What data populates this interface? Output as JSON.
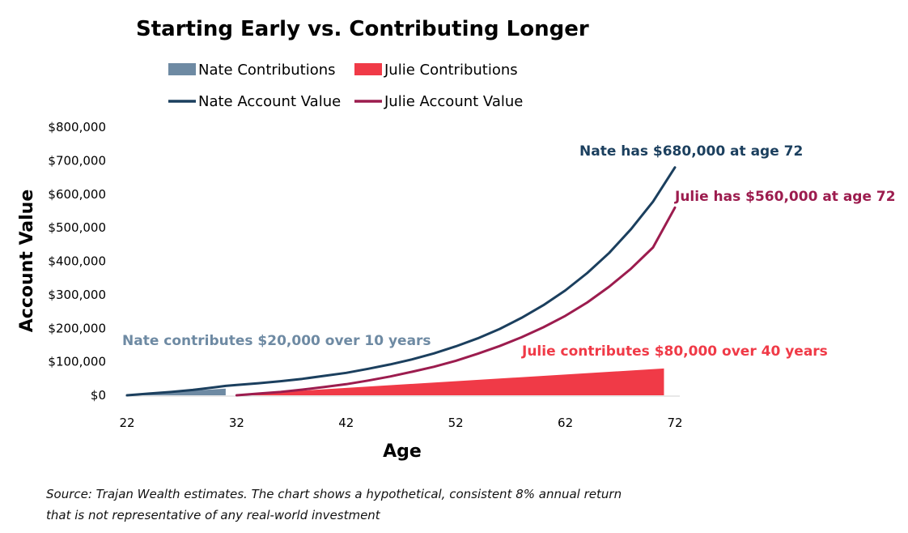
{
  "chart_data": {
    "type": "line",
    "title": "Starting Early vs. Contributing Longer",
    "xlabel": "Age",
    "ylabel": "Account Value",
    "xlim": [
      22,
      72
    ],
    "ylim": [
      0,
      800000
    ],
    "x_ticks": [
      "22",
      "32",
      "42",
      "52",
      "62",
      "72"
    ],
    "y_ticks": [
      "$0",
      "$100,000",
      "$200,000",
      "$300,000",
      "$400,000",
      "$500,000",
      "$600,000",
      "$700,000",
      "$800,000"
    ],
    "grid": false,
    "legend_position": "top",
    "legend": [
      {
        "label": "Nate Contributions",
        "kind": "area",
        "color": "#6e8aa3"
      },
      {
        "label": "Julie Contributions",
        "kind": "area",
        "color": "#f03a47"
      },
      {
        "label": "Nate Account Value",
        "kind": "line",
        "color": "#1b3f5e"
      },
      {
        "label": "Julie Account Value",
        "kind": "line",
        "color": "#9c1c4e"
      }
    ],
    "series": [
      {
        "name": "Nate Contributions",
        "type": "area",
        "color": "#6e8aa3",
        "x": [
          22,
          31
        ],
        "values": [
          2000,
          20000
        ]
      },
      {
        "name": "Julie Contributions",
        "type": "area",
        "color": "#f03a47",
        "x": [
          32,
          71
        ],
        "values": [
          2000,
          80000
        ]
      },
      {
        "name": "Nate Account Value",
        "type": "line",
        "color": "#1b3f5e",
        "x": [
          22,
          24,
          26,
          28,
          30,
          31,
          32,
          34,
          36,
          38,
          40,
          42,
          44,
          46,
          48,
          50,
          52,
          54,
          56,
          58,
          60,
          62,
          64,
          66,
          68,
          70,
          72
        ],
        "values": [
          0,
          5000,
          10000,
          16000,
          24000,
          28000,
          31000,
          36000,
          42000,
          49000,
          58000,
          67000,
          79000,
          92000,
          107000,
          125000,
          146000,
          170000,
          198000,
          231000,
          269000,
          313000,
          365000,
          425000,
          496000,
          578000,
          680000
        ]
      },
      {
        "name": "Julie Account Value",
        "type": "line",
        "color": "#9c1c4e",
        "x": [
          32,
          34,
          36,
          38,
          40,
          42,
          44,
          46,
          48,
          50,
          52,
          54,
          56,
          58,
          60,
          62,
          64,
          66,
          68,
          70,
          72
        ],
        "values": [
          0,
          5000,
          10000,
          17000,
          25000,
          33000,
          44000,
          56000,
          70000,
          85000,
          103000,
          124000,
          147000,
          173000,
          203000,
          237000,
          277000,
          324000,
          378000,
          441000,
          560000
        ]
      }
    ],
    "annotations": [
      {
        "text": "Nate has $680,000 at age 72",
        "color": "#1b3f5e"
      },
      {
        "text": "Julie has $560,000 at age 72",
        "color": "#9c1c4e"
      },
      {
        "text": "Nate contributes $20,000 over 10 years",
        "color": "#6e8aa3"
      },
      {
        "text": "Julie contributes $80,000 over 40 years",
        "color": "#f03a47"
      }
    ],
    "source": [
      "Source: Trajan Wealth estimates. The chart shows a hypothetical, consistent 8% annual return",
      "that is not representative of any real-world investment"
    ]
  }
}
